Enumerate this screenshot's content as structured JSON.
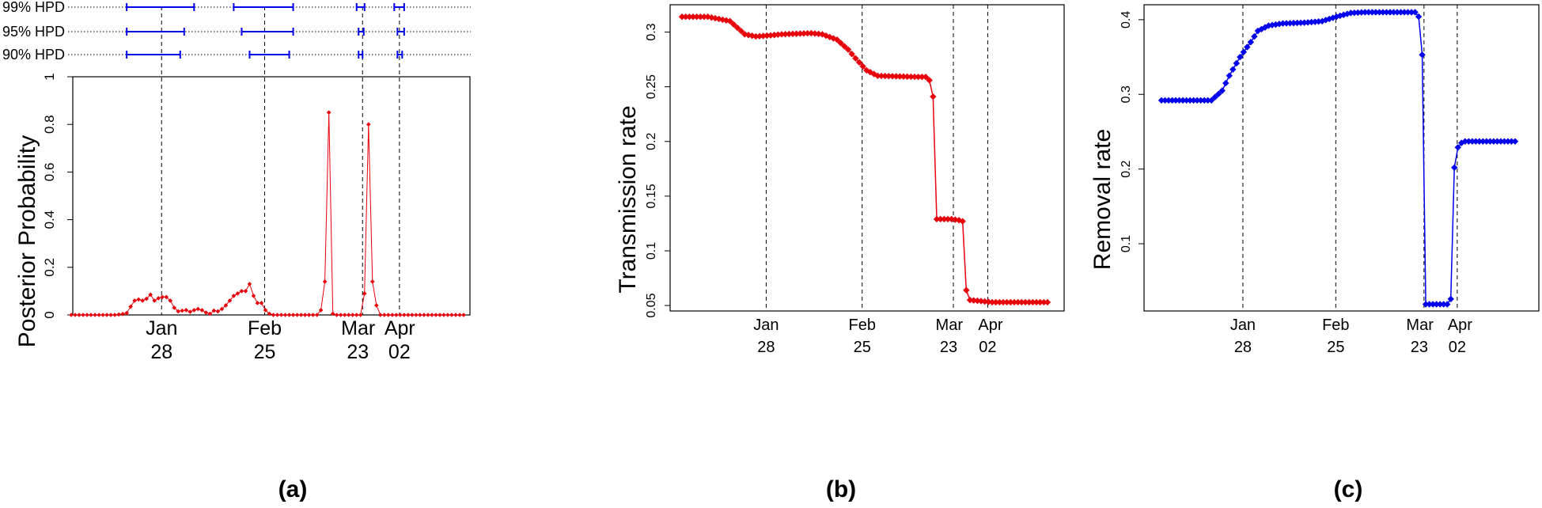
{
  "chart_data": [
    {
      "panel": "a",
      "type": "scatter",
      "label": "(a)",
      "ylabel": "Posterior Probability",
      "xlim": [
        0,
        99
      ],
      "ylim": [
        0,
        1
      ],
      "yticks": [
        0,
        0.2,
        0.4,
        0.6,
        0.8,
        1
      ],
      "ytick_labels": [
        "0",
        "0.2",
        "0.4",
        "0.6",
        "0.8",
        "1"
      ],
      "change_points": [
        {
          "x": 22.8,
          "month": "Jan",
          "day": "28"
        },
        {
          "x": 48.8,
          "month": "Feb",
          "day": "25"
        },
        {
          "x": 73.5,
          "month": "Mar",
          "day": "23"
        },
        {
          "x": 82.8,
          "month": "Apr",
          "day": "02"
        }
      ],
      "color": "#e8000b",
      "hpd": [
        {
          "label": "99% HPD",
          "intervals": [
            [
              14,
              31
            ],
            [
              41,
              56
            ],
            [
              72,
              74
            ],
            [
              81.5,
              84
            ]
          ]
        },
        {
          "label": "95% HPD",
          "intervals": [
            [
              14,
              28.5
            ],
            [
              43,
              56
            ],
            [
              72.5,
              73.8
            ],
            [
              82.3,
              84
            ]
          ]
        },
        {
          "label": "90% HPD",
          "intervals": [
            [
              14,
              27.5
            ],
            [
              45,
              55
            ],
            [
              72.5,
              73.5
            ],
            [
              82.3,
              83.5
            ]
          ]
        }
      ],
      "x": [
        0,
        1,
        2,
        3,
        4,
        5,
        6,
        7,
        8,
        9,
        10,
        11,
        12,
        13,
        14,
        15,
        16,
        17,
        18,
        19,
        20,
        21,
        22,
        23,
        24,
        25,
        26,
        27,
        28,
        29,
        30,
        31,
        32,
        33,
        34,
        35,
        36,
        37,
        38,
        39,
        40,
        41,
        42,
        43,
        44,
        45,
        46,
        47,
        48,
        49,
        50,
        51,
        52,
        53,
        54,
        55,
        56,
        57,
        58,
        59,
        60,
        61,
        62,
        63,
        64,
        65,
        66,
        67,
        68,
        69,
        70,
        71,
        72,
        73,
        74,
        75,
        76,
        77,
        78,
        79,
        80,
        81,
        82,
        83,
        84,
        85,
        86,
        87,
        88,
        89,
        90,
        91,
        92,
        93,
        94,
        95,
        96,
        97,
        98,
        99
      ],
      "values": [
        0,
        0,
        0,
        0,
        0,
        0,
        0,
        0,
        0,
        0,
        0,
        0,
        0.002,
        0.004,
        0.008,
        0.035,
        0.06,
        0.065,
        0.06,
        0.068,
        0.085,
        0.06,
        0.07,
        0.075,
        0.075,
        0.06,
        0.03,
        0.015,
        0.018,
        0.02,
        0.013,
        0.02,
        0.025,
        0.02,
        0.01,
        0.005,
        0.018,
        0.015,
        0.025,
        0.04,
        0.06,
        0.08,
        0.09,
        0.1,
        0.1,
        0.13,
        0.08,
        0.05,
        0.05,
        0.02,
        0.005,
        0,
        0,
        0,
        0,
        0,
        0,
        0,
        0,
        0,
        0,
        0,
        0,
        0.02,
        0.14,
        0.85,
        0.005,
        0,
        0,
        0,
        0,
        0,
        0,
        0,
        0.09,
        0.8,
        0.14,
        0.04,
        0,
        0,
        0,
        0,
        0,
        0,
        0,
        0,
        0,
        0,
        0,
        0,
        0,
        0,
        0,
        0,
        0,
        0,
        0,
        0,
        0,
        0
      ]
    },
    {
      "panel": "b",
      "type": "line",
      "label": "(b)",
      "ylabel": "Transmission rate",
      "xlim": [
        0,
        99
      ],
      "ylim": [
        0.045,
        0.325
      ],
      "yticks": [
        0.05,
        0.1,
        0.15,
        0.2,
        0.25,
        0.3
      ],
      "ytick_labels": [
        "0.05",
        "0.1",
        "0.15",
        "0.2",
        "0.25",
        "0.3"
      ],
      "change_points": [
        {
          "x": 22.8,
          "month": "Jan",
          "day": "28"
        },
        {
          "x": 48.8,
          "month": "Feb",
          "day": "25"
        },
        {
          "x": 73.5,
          "month": "Mar",
          "day": "23"
        },
        {
          "x": 82.8,
          "month": "Apr",
          "day": "02"
        }
      ],
      "color": "#e8000b",
      "breakpoints": [
        [
          0,
          0.314
        ],
        [
          7,
          0.314
        ],
        [
          13,
          0.31
        ],
        [
          17,
          0.298
        ],
        [
          20,
          0.296
        ],
        [
          24,
          0.297
        ],
        [
          27,
          0.298
        ],
        [
          35,
          0.299
        ],
        [
          38,
          0.298
        ],
        [
          42,
          0.293
        ],
        [
          45,
          0.284
        ],
        [
          47,
          0.276
        ],
        [
          50,
          0.265
        ],
        [
          53,
          0.26
        ],
        [
          64,
          0.259
        ],
        [
          66,
          0.259
        ],
        [
          67,
          0.256
        ],
        [
          68,
          0.241
        ],
        [
          69,
          0.129
        ],
        [
          73,
          0.129
        ],
        [
          75,
          0.128
        ],
        [
          76,
          0.127
        ],
        [
          77,
          0.064
        ],
        [
          78,
          0.055
        ],
        [
          84,
          0.053
        ],
        [
          99,
          0.053
        ]
      ]
    },
    {
      "panel": "c",
      "type": "line",
      "label": "(c)",
      "ylabel": "Removal rate",
      "xlim": [
        0,
        99
      ],
      "ylim": [
        0.01,
        0.42
      ],
      "yticks": [
        0.1,
        0.2,
        0.3,
        0.4
      ],
      "ytick_labels": [
        "0.1",
        "0.2",
        "0.3",
        "0.4"
      ],
      "change_points": [
        {
          "x": 22.8,
          "month": "Jan",
          "day": "28"
        },
        {
          "x": 48.8,
          "month": "Feb",
          "day": "25"
        },
        {
          "x": 73.5,
          "month": "Mar",
          "day": "23"
        },
        {
          "x": 82.8,
          "month": "Apr",
          "day": "02"
        }
      ],
      "color": "#0000ee",
      "breakpoints": [
        [
          0,
          0.292
        ],
        [
          14,
          0.292
        ],
        [
          17,
          0.305
        ],
        [
          19,
          0.325
        ],
        [
          22,
          0.35
        ],
        [
          25,
          0.37
        ],
        [
          27,
          0.385
        ],
        [
          30,
          0.392
        ],
        [
          34,
          0.395
        ],
        [
          40,
          0.396
        ],
        [
          45,
          0.398
        ],
        [
          49,
          0.404
        ],
        [
          53,
          0.409
        ],
        [
          57,
          0.41
        ],
        [
          70,
          0.41
        ],
        [
          71,
          0.41
        ],
        [
          72,
          0.404
        ],
        [
          73,
          0.353
        ],
        [
          74,
          0.019
        ],
        [
          76,
          0.019
        ],
        [
          80,
          0.019
        ],
        [
          81,
          0.026
        ],
        [
          82,
          0.202
        ],
        [
          83,
          0.229
        ],
        [
          84,
          0.235
        ],
        [
          85,
          0.237
        ],
        [
          99,
          0.237
        ]
      ]
    }
  ]
}
